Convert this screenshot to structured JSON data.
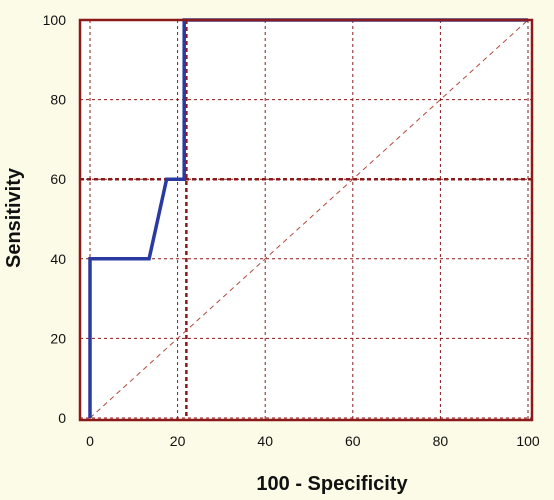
{
  "chart_data": {
    "type": "line",
    "xlabel": "100 - Specificity",
    "ylabel": "Sensitivity",
    "xlim": [
      0,
      100
    ],
    "ylim": [
      0,
      100
    ],
    "x_ticks": [
      0,
      20,
      40,
      60,
      80,
      100
    ],
    "y_ticks": [
      0,
      20,
      40,
      60,
      80,
      100
    ],
    "grid": true,
    "series": [
      {
        "color": "#2a3aa0",
        "style": "solid",
        "x": [
          0,
          0,
          13.5,
          17.5,
          21.5,
          21.5,
          100
        ],
        "y": [
          0,
          40,
          40,
          60,
          60,
          100,
          100
        ]
      },
      {
        "color": "#b04a3a",
        "style": "dashed",
        "x": [
          0,
          100
        ],
        "y": [
          0,
          100
        ]
      }
    ],
    "reference_lines": [
      {
        "axis": "x",
        "value": 22
      },
      {
        "axis": "y",
        "value": 60
      }
    ],
    "colors": {
      "background": "#fbfbe8",
      "plot_background": "#ffffff",
      "grid": "#8b1a1a",
      "frame": "#8b1a1a"
    }
  }
}
